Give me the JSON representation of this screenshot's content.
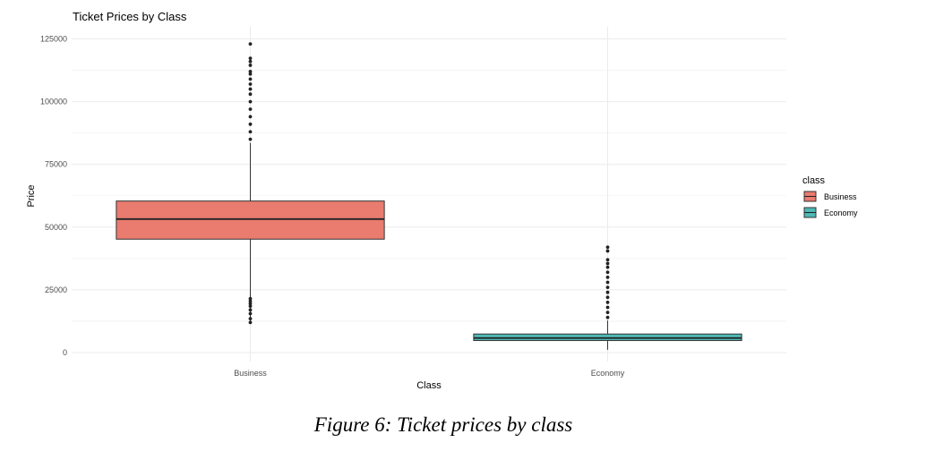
{
  "caption": "Figure 6: Ticket prices by class",
  "colors": {
    "Business": "#e97b6f",
    "Economy": "#4eb8b4",
    "grid": "#ebebeb",
    "outline": "#333333"
  },
  "chart_data": {
    "type": "box",
    "title": "Ticket Prices by Class",
    "xlabel": "Class",
    "ylabel": "Price",
    "ylim": [
      0,
      125000
    ],
    "yticks": [
      {
        "value": 0,
        "label": "0"
      },
      {
        "value": 25000,
        "label": "25000"
      },
      {
        "value": 50000,
        "label": "50000"
      },
      {
        "value": 75000,
        "label": "75000"
      },
      {
        "value": 100000,
        "label": "100000"
      },
      {
        "value": 125000,
        "label": "125000"
      }
    ],
    "grid": true,
    "legend": {
      "title": "class",
      "placement": "right",
      "entries": [
        "Business",
        "Economy"
      ]
    },
    "categories": [
      "Business",
      "Economy"
    ],
    "boxes": [
      {
        "name": "Business",
        "min": 12000,
        "q1": 45200,
        "median": 53200,
        "q3": 60400,
        "max": 83600,
        "outliers": [
          85000,
          88000,
          91000,
          94000,
          97000,
          100000,
          103000,
          105000,
          107000,
          109000,
          111000,
          112000,
          114500,
          116000,
          117300,
          123000,
          21500,
          20500,
          19500,
          18500,
          17000,
          15500,
          13500,
          12000
        ]
      },
      {
        "name": "Economy",
        "min": 1100,
        "q1": 4800,
        "median": 5800,
        "q3": 7400,
        "max": 12800,
        "outliers": [
          14000,
          16000,
          18000,
          20000,
          22000,
          24000,
          26000,
          28000,
          30000,
          32000,
          34000,
          35500,
          37000,
          40500,
          42000
        ]
      }
    ]
  }
}
